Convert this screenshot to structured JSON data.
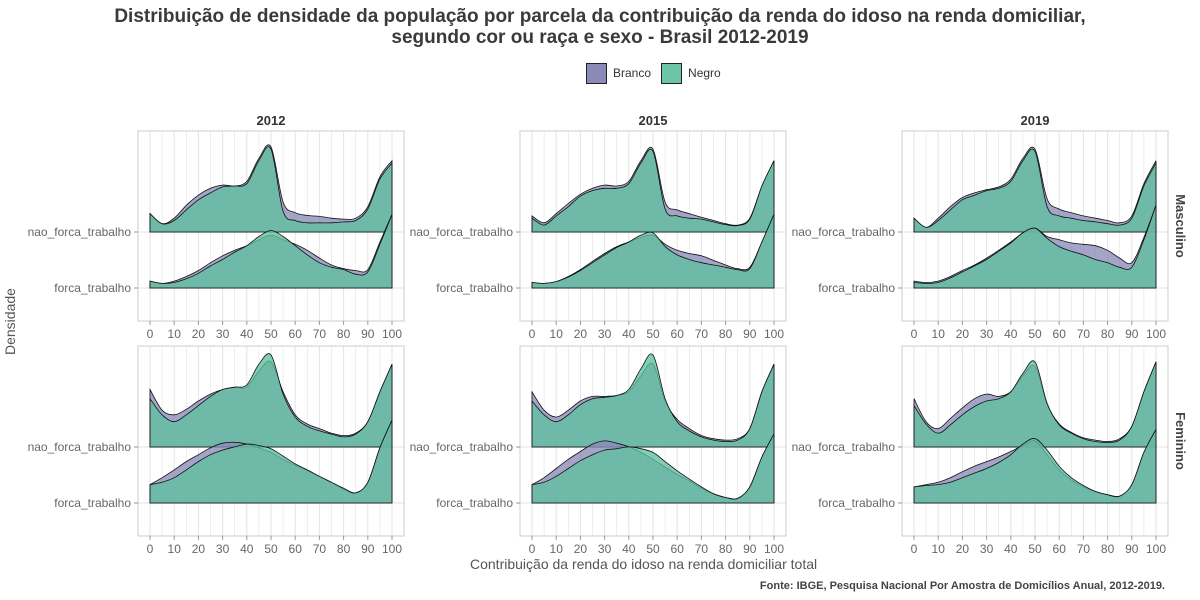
{
  "title_line1": "Distribuição de densidade da população por parcela da contribuição da renda do idoso na renda domiciliar,",
  "title_line2": "segundo cor ou raça e sexo - Brasil 2012-2019",
  "legend": [
    {
      "label": "Branco",
      "color": "#8a8ab8"
    },
    {
      "label": "Negro",
      "color": "#6cc5a8"
    }
  ],
  "y_axis_label": "Densidade",
  "x_axis_label": "Contribuição da renda do idoso na renda domiciliar total",
  "caption": "Fonte: IBGE, Pesquisa Nacional Por Amostra de Domicílios Anual, 2012-2019.",
  "colors": {
    "branco_fill": "#8a8ab8",
    "negro_fill": "#5fbf9f",
    "overlap": "#4f9e8e",
    "panel_border": "#cccccc",
    "grid": "#e3e3e3"
  },
  "chart_data": {
    "type": "area",
    "subtype": "ridgeline density",
    "columns": [
      "2012",
      "2015",
      "2019"
    ],
    "rows": [
      "Masculino",
      "Feminino"
    ],
    "categories": [
      "forca_trabalho",
      "nao_forca_trabalho"
    ],
    "x_ticks": [
      0,
      10,
      20,
      30,
      40,
      50,
      60,
      70,
      80,
      90,
      100
    ],
    "xlim": [
      0,
      100
    ],
    "x": [
      0,
      5,
      10,
      15,
      20,
      25,
      30,
      35,
      40,
      45,
      50,
      55,
      60,
      65,
      70,
      75,
      80,
      85,
      90,
      95,
      100
    ],
    "panels": [
      {
        "column": "2012",
        "row": "Masculino",
        "ridges": [
          {
            "category": "nao_forca_trabalho",
            "series": [
              {
                "name": "Branco",
                "values": [
                  0.4,
                  0.18,
                  0.3,
                  0.58,
                  0.8,
                  0.95,
                  1.02,
                  1.0,
                  1.1,
                  1.6,
                  1.85,
                  0.65,
                  0.42,
                  0.36,
                  0.34,
                  0.3,
                  0.28,
                  0.3,
                  0.55,
                  1.2,
                  1.55
                ]
              },
              {
                "name": "Negro",
                "values": [
                  0.4,
                  0.18,
                  0.25,
                  0.48,
                  0.7,
                  0.85,
                  0.98,
                  1.0,
                  1.05,
                  1.55,
                  1.8,
                  0.45,
                  0.25,
                  0.2,
                  0.2,
                  0.2,
                  0.22,
                  0.25,
                  0.5,
                  1.15,
                  1.5
                ]
              }
            ]
          },
          {
            "category": "forca_trabalho",
            "series": [
              {
                "name": "Branco",
                "values": [
                  0.15,
                  0.1,
                  0.15,
                  0.25,
                  0.38,
                  0.55,
                  0.7,
                  0.82,
                  0.92,
                  1.05,
                  1.15,
                  1.05,
                  0.95,
                  0.82,
                  0.65,
                  0.5,
                  0.42,
                  0.38,
                  0.4,
                  1.0,
                  1.6
                ]
              },
              {
                "name": "Negro",
                "values": [
                  0.15,
                  0.1,
                  0.12,
                  0.2,
                  0.32,
                  0.48,
                  0.62,
                  0.78,
                  0.92,
                  1.12,
                  1.25,
                  1.12,
                  0.92,
                  0.72,
                  0.55,
                  0.45,
                  0.4,
                  0.3,
                  0.35,
                  0.95,
                  1.6
                ]
              }
            ]
          }
        ]
      },
      {
        "column": "2015",
        "row": "Masculino",
        "ridges": [
          {
            "category": "nao_forca_trabalho",
            "series": [
              {
                "name": "Branco",
                "values": [
                  0.35,
                  0.2,
                  0.4,
                  0.62,
                  0.82,
                  0.95,
                  1.02,
                  1.0,
                  1.1,
                  1.55,
                  1.8,
                  0.65,
                  0.48,
                  0.4,
                  0.32,
                  0.25,
                  0.18,
                  0.15,
                  0.3,
                  1.0,
                  1.55
                ]
              },
              {
                "name": "Negro",
                "values": [
                  0.3,
                  0.15,
                  0.35,
                  0.55,
                  0.78,
                  0.9,
                  0.95,
                  0.95,
                  1.05,
                  1.5,
                  1.75,
                  0.5,
                  0.35,
                  0.3,
                  0.28,
                  0.22,
                  0.16,
                  0.14,
                  0.28,
                  1.0,
                  1.55
                ]
              }
            ]
          },
          {
            "category": "forca_trabalho",
            "series": [
              {
                "name": "Branco",
                "values": [
                  0.12,
                  0.1,
                  0.14,
                  0.25,
                  0.4,
                  0.58,
                  0.75,
                  0.9,
                  1.0,
                  1.1,
                  1.15,
                  0.95,
                  0.82,
                  0.75,
                  0.7,
                  0.6,
                  0.5,
                  0.42,
                  0.45,
                  1.0,
                  1.6
                ]
              },
              {
                "name": "Negro",
                "values": [
                  0.12,
                  0.1,
                  0.14,
                  0.24,
                  0.38,
                  0.55,
                  0.72,
                  0.88,
                  1.0,
                  1.15,
                  1.2,
                  0.9,
                  0.72,
                  0.62,
                  0.55,
                  0.5,
                  0.45,
                  0.4,
                  0.42,
                  1.0,
                  1.6
                ]
              }
            ]
          }
        ]
      },
      {
        "column": "2019",
        "row": "Masculino",
        "ridges": [
          {
            "category": "nao_forca_trabalho",
            "series": [
              {
                "name": "Branco",
                "values": [
                  0.3,
                  0.1,
                  0.3,
                  0.55,
                  0.75,
                  0.85,
                  0.92,
                  0.98,
                  1.15,
                  1.6,
                  1.8,
                  0.72,
                  0.5,
                  0.42,
                  0.35,
                  0.3,
                  0.25,
                  0.2,
                  0.35,
                  1.05,
                  1.55
                ]
              },
              {
                "name": "Negro",
                "values": [
                  0.3,
                  0.1,
                  0.25,
                  0.48,
                  0.7,
                  0.8,
                  0.9,
                  0.95,
                  1.1,
                  1.55,
                  1.75,
                  0.55,
                  0.35,
                  0.3,
                  0.25,
                  0.22,
                  0.18,
                  0.15,
                  0.3,
                  1.0,
                  1.5
                ]
              }
            ]
          },
          {
            "category": "forca_trabalho",
            "series": [
              {
                "name": "Branco",
                "values": [
                  0.15,
                  0.12,
                  0.15,
                  0.25,
                  0.38,
                  0.5,
                  0.65,
                  0.82,
                  1.0,
                  1.2,
                  1.3,
                  1.12,
                  1.05,
                  0.98,
                  0.95,
                  0.92,
                  0.82,
                  0.65,
                  0.55,
                  1.1,
                  1.8
                ]
              },
              {
                "name": "Negro",
                "values": [
                  0.12,
                  0.1,
                  0.12,
                  0.22,
                  0.35,
                  0.48,
                  0.62,
                  0.8,
                  0.98,
                  1.2,
                  1.3,
                  1.08,
                  0.9,
                  0.8,
                  0.72,
                  0.62,
                  0.55,
                  0.45,
                  0.45,
                  1.05,
                  1.8
                ]
              }
            ]
          }
        ]
      },
      {
        "column": "2012",
        "row": "Feminino",
        "ridges": [
          {
            "category": "nao_forca_trabalho",
            "series": [
              {
                "name": "Branco",
                "values": [
                  1.25,
                  0.8,
                  0.7,
                  0.82,
                  1.0,
                  1.15,
                  1.25,
                  1.3,
                  1.3,
                  1.65,
                  1.85,
                  1.2,
                  0.7,
                  0.5,
                  0.4,
                  0.3,
                  0.25,
                  0.3,
                  0.55,
                  1.2,
                  1.8
                ]
              },
              {
                "name": "Negro",
                "values": [
                  1.05,
                  0.7,
                  0.55,
                  0.7,
                  0.9,
                  1.1,
                  1.25,
                  1.3,
                  1.35,
                  1.8,
                  2.0,
                  1.15,
                  0.65,
                  0.45,
                  0.35,
                  0.28,
                  0.22,
                  0.28,
                  0.55,
                  1.2,
                  1.8
                ]
              }
            ]
          },
          {
            "category": "forca_trabalho",
            "series": [
              {
                "name": "Branco",
                "values": [
                  0.4,
                  0.55,
                  0.72,
                  0.9,
                  1.05,
                  1.2,
                  1.3,
                  1.32,
                  1.28,
                  1.2,
                  1.1,
                  0.95,
                  0.82,
                  0.7,
                  0.58,
                  0.45,
                  0.3,
                  0.22,
                  0.45,
                  1.2,
                  1.8
                ]
              },
              {
                "name": "Negro",
                "values": [
                  0.4,
                  0.45,
                  0.55,
                  0.72,
                  0.9,
                  1.05,
                  1.15,
                  1.22,
                  1.28,
                  1.25,
                  1.18,
                  1.02,
                  0.85,
                  0.72,
                  0.58,
                  0.45,
                  0.32,
                  0.22,
                  0.45,
                  1.2,
                  1.8
                ]
              }
            ]
          }
        ]
      },
      {
        "column": "2015",
        "row": "Feminino",
        "ridges": [
          {
            "category": "nao_forca_trabalho",
            "series": [
              {
                "name": "Branco",
                "values": [
                  1.2,
                  0.8,
                  0.65,
                  0.8,
                  1.0,
                  1.1,
                  1.1,
                  1.12,
                  1.2,
                  1.55,
                  1.8,
                  1.0,
                  0.6,
                  0.4,
                  0.25,
                  0.18,
                  0.15,
                  0.18,
                  0.4,
                  1.2,
                  1.8
                ]
              },
              {
                "name": "Negro",
                "values": [
                  1.0,
                  0.7,
                  0.55,
                  0.7,
                  0.92,
                  1.05,
                  1.08,
                  1.12,
                  1.25,
                  1.7,
                  2.0,
                  1.05,
                  0.55,
                  0.35,
                  0.22,
                  0.15,
                  0.12,
                  0.15,
                  0.4,
                  1.2,
                  1.8
                ]
              }
            ]
          },
          {
            "category": "forca_trabalho",
            "series": [
              {
                "name": "Branco",
                "values": [
                  0.4,
                  0.55,
                  0.75,
                  0.95,
                  1.12,
                  1.28,
                  1.35,
                  1.3,
                  1.22,
                  1.1,
                  0.95,
                  0.78,
                  0.62,
                  0.48,
                  0.32,
                  0.2,
                  0.12,
                  0.1,
                  0.35,
                  1.0,
                  1.5
                ]
              },
              {
                "name": "Negro",
                "values": [
                  0.4,
                  0.45,
                  0.58,
                  0.75,
                  0.92,
                  1.05,
                  1.15,
                  1.18,
                  1.22,
                  1.18,
                  1.1,
                  0.9,
                  0.7,
                  0.52,
                  0.35,
                  0.2,
                  0.12,
                  0.1,
                  0.35,
                  1.0,
                  1.5
                ]
              }
            ]
          }
        ]
      },
      {
        "column": "2019",
        "row": "Feminino",
        "ridges": [
          {
            "category": "nao_forca_trabalho",
            "series": [
              {
                "name": "Branco",
                "values": [
                  1.05,
                  0.55,
                  0.4,
                  0.62,
                  0.85,
                  1.05,
                  1.15,
                  1.1,
                  1.2,
                  1.55,
                  1.75,
                  0.92,
                  0.5,
                  0.32,
                  0.2,
                  0.15,
                  0.12,
                  0.18,
                  0.45,
                  1.2,
                  1.85
                ]
              },
              {
                "name": "Negro",
                "values": [
                  0.9,
                  0.5,
                  0.3,
                  0.48,
                  0.7,
                  0.88,
                  1.0,
                  1.05,
                  1.2,
                  1.6,
                  1.85,
                  0.95,
                  0.48,
                  0.3,
                  0.18,
                  0.12,
                  0.1,
                  0.15,
                  0.45,
                  1.2,
                  1.85
                ]
              }
            ]
          },
          {
            "category": "forca_trabalho",
            "series": [
              {
                "name": "Branco",
                "values": [
                  0.35,
                  0.4,
                  0.45,
                  0.55,
                  0.68,
                  0.8,
                  0.9,
                  1.0,
                  1.12,
                  1.25,
                  1.35,
                  1.05,
                  0.72,
                  0.5,
                  0.35,
                  0.25,
                  0.18,
                  0.15,
                  0.4,
                  1.1,
                  1.6
                ]
              },
              {
                "name": "Negro",
                "values": [
                  0.35,
                  0.38,
                  0.4,
                  0.45,
                  0.55,
                  0.65,
                  0.75,
                  0.88,
                  1.05,
                  1.28,
                  1.4,
                  1.15,
                  0.8,
                  0.55,
                  0.38,
                  0.25,
                  0.18,
                  0.15,
                  0.4,
                  1.1,
                  1.6
                ]
              }
            ]
          }
        ]
      }
    ]
  }
}
